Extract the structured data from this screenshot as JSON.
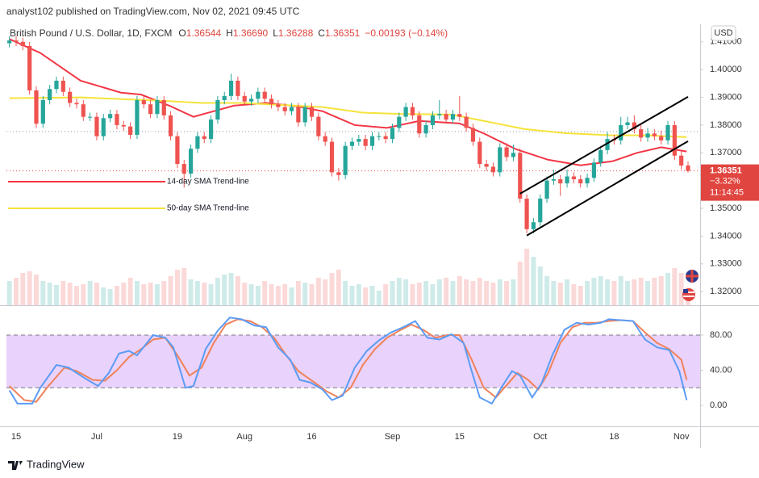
{
  "header": {
    "published": "analyst102 published on TradingView.com, Nov 02, 2021 09:45 UTC"
  },
  "footer": {
    "logo": "TradingView"
  },
  "chart_data": [
    {
      "type": "candlestick",
      "title": "British Pound / U.S. Dollar, 1D, FXCM",
      "ohlc_legend": [
        {
          "label": "O",
          "value": "1.36544"
        },
        {
          "label": "H",
          "value": "1.36690"
        },
        {
          "label": "L",
          "value": "1.36288"
        },
        {
          "label": "C",
          "value": "1.36351"
        }
      ],
      "change": "−0.00193 (−0.14%)",
      "currency": "USD",
      "xlim": [
        -0.44,
        102.8
      ],
      "xticks": [
        {
          "value": 1,
          "label": "15"
        },
        {
          "value": 13,
          "label": "Jul"
        },
        {
          "value": 25,
          "label": "19"
        },
        {
          "value": 35,
          "label": "Aug"
        },
        {
          "value": 45,
          "label": "16"
        },
        {
          "value": 57,
          "label": "Sep"
        },
        {
          "value": 67,
          "label": "15"
        },
        {
          "value": 79,
          "label": "Oct"
        },
        {
          "value": 90,
          "label": "18"
        },
        {
          "value": 100,
          "label": "Nov"
        }
      ],
      "ylim": [
        1.3151,
        1.4149
      ],
      "yticks": [
        {
          "value": 1.41,
          "label": "1.41000"
        },
        {
          "value": 1.4,
          "label": "1.40000"
        },
        {
          "value": 1.39,
          "label": "1.39000"
        },
        {
          "value": 1.38,
          "label": "1.38000"
        },
        {
          "value": 1.37,
          "label": "1.37000"
        },
        {
          "value": 1.35,
          "label": "1.35000"
        },
        {
          "value": 1.34,
          "label": "1.34000"
        },
        {
          "value": 1.33,
          "label": "1.33000"
        },
        {
          "value": 1.32,
          "label": "1.32000"
        }
      ],
      "up_color": "#26a69a",
      "down_color": "#ef5350",
      "open": [
        1.4095,
        1.4105,
        1.41,
        1.4085,
        1.3925,
        1.3805,
        1.389,
        1.393,
        1.396,
        1.392,
        1.388,
        1.3875,
        1.383,
        1.383,
        1.376,
        1.3825,
        1.384,
        1.38,
        1.3795,
        1.3765,
        1.389,
        1.3875,
        1.384,
        1.389,
        1.3835,
        1.376,
        1.366,
        1.3625,
        1.3715,
        1.376,
        1.375,
        1.382,
        1.389,
        1.3905,
        1.396,
        1.3905,
        1.3885,
        1.3895,
        1.392,
        1.3895,
        1.3875,
        1.3865,
        1.385,
        1.3865,
        1.381,
        1.3865,
        1.383,
        1.376,
        1.374,
        1.363,
        1.362,
        1.3725,
        1.374,
        1.375,
        1.3725,
        1.376,
        1.376,
        1.375,
        1.379,
        1.383,
        1.3865,
        1.3835,
        1.377,
        1.38,
        1.3835,
        1.384,
        1.382,
        1.384,
        1.383,
        1.379,
        1.374,
        1.366,
        1.365,
        1.363,
        1.372,
        1.3685,
        1.37,
        1.3535,
        1.3425,
        1.345,
        1.3535,
        1.36,
        1.3605,
        1.359,
        1.3615,
        1.3605,
        1.359,
        1.361,
        1.3665,
        1.371,
        1.375,
        1.3745,
        1.38,
        1.381,
        1.3785,
        1.3755,
        1.377,
        1.376,
        1.3745,
        1.38,
        1.369,
        1.36544
      ],
      "high": [
        1.412,
        1.412,
        1.4115,
        1.41,
        1.394,
        1.3905,
        1.3945,
        1.3975,
        1.3975,
        1.3935,
        1.3895,
        1.389,
        1.3845,
        1.3845,
        1.384,
        1.3855,
        1.3855,
        1.3815,
        1.381,
        1.3905,
        1.3905,
        1.389,
        1.3905,
        1.3905,
        1.385,
        1.3775,
        1.3675,
        1.373,
        1.3775,
        1.3775,
        1.3835,
        1.3905,
        1.392,
        1.3985,
        1.3975,
        1.392,
        1.391,
        1.3935,
        1.3935,
        1.391,
        1.389,
        1.388,
        1.388,
        1.388,
        1.388,
        1.388,
        1.3845,
        1.3775,
        1.3755,
        1.3645,
        1.374,
        1.3755,
        1.3765,
        1.3765,
        1.3775,
        1.3775,
        1.3775,
        1.3805,
        1.3845,
        1.388,
        1.388,
        1.385,
        1.3815,
        1.385,
        1.389,
        1.3855,
        1.3855,
        1.3905,
        1.3845,
        1.3805,
        1.3755,
        1.3675,
        1.3665,
        1.3735,
        1.3735,
        1.373,
        1.3715,
        1.355,
        1.3465,
        1.355,
        1.3615,
        1.364,
        1.362,
        1.364,
        1.363,
        1.362,
        1.3625,
        1.368,
        1.3725,
        1.3775,
        1.3765,
        1.383,
        1.383,
        1.3835,
        1.38,
        1.379,
        1.3785,
        1.378,
        1.3815,
        1.3815,
        1.3705,
        1.3669
      ],
      "low": [
        1.408,
        1.4085,
        1.407,
        1.391,
        1.379,
        1.379,
        1.3875,
        1.3915,
        1.3905,
        1.3865,
        1.386,
        1.3815,
        1.3815,
        1.3745,
        1.3745,
        1.381,
        1.3785,
        1.378,
        1.375,
        1.375,
        1.386,
        1.3825,
        1.3825,
        1.382,
        1.3745,
        1.3645,
        1.3575,
        1.361,
        1.37,
        1.3735,
        1.3735,
        1.3805,
        1.3875,
        1.389,
        1.389,
        1.387,
        1.387,
        1.388,
        1.388,
        1.386,
        1.385,
        1.3835,
        1.3835,
        1.3795,
        1.3795,
        1.3815,
        1.3745,
        1.3725,
        1.3615,
        1.36,
        1.3605,
        1.371,
        1.3725,
        1.371,
        1.371,
        1.3745,
        1.3735,
        1.3735,
        1.3775,
        1.3815,
        1.382,
        1.3755,
        1.3755,
        1.3785,
        1.382,
        1.3805,
        1.3805,
        1.3815,
        1.3775,
        1.3725,
        1.3645,
        1.3635,
        1.3615,
        1.3615,
        1.367,
        1.367,
        1.352,
        1.341,
        1.341,
        1.3435,
        1.352,
        1.3585,
        1.3545,
        1.3575,
        1.359,
        1.3575,
        1.3575,
        1.3595,
        1.365,
        1.3695,
        1.373,
        1.373,
        1.3785,
        1.377,
        1.374,
        1.374,
        1.3745,
        1.373,
        1.373,
        1.3675,
        1.364,
        1.36288
      ],
      "close": [
        1.4105,
        1.41,
        1.4085,
        1.3925,
        1.3805,
        1.389,
        1.393,
        1.396,
        1.392,
        1.388,
        1.3875,
        1.383,
        1.383,
        1.376,
        1.3825,
        1.384,
        1.38,
        1.3795,
        1.3765,
        1.389,
        1.3875,
        1.384,
        1.389,
        1.3835,
        1.376,
        1.366,
        1.3625,
        1.3715,
        1.376,
        1.375,
        1.382,
        1.389,
        1.3905,
        1.396,
        1.3905,
        1.3885,
        1.3895,
        1.392,
        1.3895,
        1.3875,
        1.3865,
        1.385,
        1.3865,
        1.381,
        1.3865,
        1.383,
        1.376,
        1.374,
        1.363,
        1.362,
        1.3725,
        1.374,
        1.375,
        1.3725,
        1.376,
        1.376,
        1.375,
        1.379,
        1.383,
        1.3865,
        1.3835,
        1.377,
        1.38,
        1.3835,
        1.384,
        1.382,
        1.384,
        1.383,
        1.379,
        1.374,
        1.366,
        1.365,
        1.363,
        1.372,
        1.3685,
        1.37,
        1.3535,
        1.3425,
        1.345,
        1.3535,
        1.36,
        1.3605,
        1.359,
        1.3615,
        1.3605,
        1.359,
        1.361,
        1.3665,
        1.371,
        1.375,
        1.3745,
        1.38,
        1.381,
        1.3785,
        1.3755,
        1.377,
        1.376,
        1.3745,
        1.38,
        1.369,
        1.36544,
        1.36351
      ],
      "volume": [
        30,
        34,
        40,
        42,
        38,
        30,
        28,
        25,
        30,
        28,
        24,
        26,
        30,
        28,
        22,
        20,
        24,
        28,
        34,
        30,
        26,
        28,
        26,
        30,
        36,
        44,
        46,
        32,
        30,
        28,
        26,
        34,
        38,
        40,
        36,
        28,
        26,
        24,
        30,
        26,
        24,
        26,
        22,
        30,
        28,
        26,
        34,
        32,
        40,
        44,
        30,
        24,
        26,
        22,
        24,
        18,
        26,
        30,
        34,
        32,
        26,
        28,
        30,
        26,
        32,
        34,
        30,
        36,
        32,
        30,
        34,
        30,
        28,
        32,
        30,
        32,
        54,
        70,
        60,
        48,
        36,
        30,
        28,
        32,
        26,
        24,
        30,
        34,
        36,
        32,
        30,
        36,
        30,
        32,
        34,
        30,
        34,
        36,
        40,
        46,
        40,
        22
      ],
      "series": [
        {
          "name": "14-day SMA Trend-line",
          "color": "#f23645",
          "x": [
            0,
            4.6,
            10.6,
            16.6,
            19.6,
            23.8,
            27.4,
            33.4,
            38.2,
            43,
            46.6,
            51.4,
            56.2,
            61,
            67,
            70.6,
            75.4,
            80.2,
            85,
            89.8,
            93.4,
            97,
            100.8
          ],
          "values": [
            1.411,
            1.406,
            1.396,
            1.3917,
            1.391,
            1.387,
            1.383,
            1.387,
            1.388,
            1.3867,
            1.385,
            1.38,
            1.379,
            1.3815,
            1.3806,
            1.377,
            1.3713,
            1.3675,
            1.3655,
            1.367,
            1.37,
            1.372,
            1.3705
          ]
        },
        {
          "name": "50-day SMA Trend-line",
          "color": "#f5e33b",
          "x": [
            0,
            10.6,
            22.6,
            28.6,
            34.6,
            46.6,
            52.6,
            58.6,
            65.8,
            70.6,
            76.6,
            82.6,
            89.8,
            94.6,
            100.8
          ],
          "values": [
            1.3897,
            1.39,
            1.3888,
            1.388,
            1.388,
            1.3865,
            1.3845,
            1.384,
            1.3838,
            1.3815,
            1.3786,
            1.3771,
            1.3763,
            1.3763,
            1.3757
          ]
        }
      ],
      "trend_lines": [
        {
          "color": "#000000",
          "x": [
            76,
            101
          ],
          "values": [
            1.3553,
            1.3902
          ]
        },
        {
          "color": "#000000",
          "x": [
            77,
            101
          ],
          "values": [
            1.3402,
            1.3742
          ]
        }
      ],
      "hlines": [
        {
          "value": 1.3777,
          "color": "#9598a1"
        },
        {
          "value": 1.36351,
          "color": "#e0453f"
        }
      ],
      "last_price": {
        "change": "−3.32%",
        "countdown": "11:14:45",
        "color": "#e0453f"
      }
    },
    {
      "type": "line",
      "xlim": [
        -0.44,
        102.8
      ],
      "ylim": [
        -23.9,
        112.2
      ],
      "yticks": [
        {
          "value": 80,
          "label": "80.00"
        },
        {
          "value": 40,
          "label": "40.00"
        },
        {
          "value": 0,
          "label": "0.00"
        }
      ],
      "bands": [
        20,
        80
      ],
      "band_color": "#e9d2fb",
      "series": [
        {
          "color": "#5b9cf6",
          "x": [
            0,
            1.2,
            3.4,
            4.6,
            7,
            8.8,
            11.2,
            13.2,
            14.8,
            16.3,
            17.8,
            19,
            21.4,
            23.2,
            24.4,
            26.2,
            27.4,
            29.2,
            31,
            32.8,
            34.6,
            36.4,
            38.2,
            40,
            41.8,
            43.2,
            44.8,
            46.6,
            48,
            49.6,
            51.4,
            53.2,
            55,
            56.8,
            58.6,
            60.4,
            62.2,
            64,
            65.8,
            67.6,
            68.8,
            70,
            71.8,
            73.2,
            74.8,
            76,
            77.8,
            79.2,
            80.8,
            82.6,
            84.4,
            86.2,
            88,
            89.2,
            91,
            92.8,
            94.6,
            96.4,
            98.2,
            99.7,
            100.8
          ],
          "values": [
            17,
            2,
            2,
            20,
            46,
            43,
            31,
            22,
            37,
            59,
            62,
            57,
            80,
            77,
            66,
            20,
            22,
            64,
            85,
            100,
            98,
            91,
            89,
            66,
            52,
            29,
            26,
            18,
            6,
            11,
            43,
            62,
            74,
            83,
            89,
            96,
            77,
            75,
            81,
            71,
            39,
            9,
            2,
            20,
            39,
            34,
            9,
            25,
            57,
            86,
            94,
            92,
            94,
            98,
            97,
            96,
            75,
            66,
            63,
            39,
            6
          ]
        },
        {
          "color": "#f0825a",
          "x": [
            0,
            2.2,
            4,
            5.8,
            8.2,
            10,
            12.4,
            14.2,
            16,
            17.8,
            19.6,
            21.4,
            23.2,
            25,
            26.8,
            28.6,
            30.4,
            32.2,
            34,
            35.8,
            37.6,
            39.4,
            41.2,
            43,
            45.4,
            47.2,
            49,
            50.8,
            52.6,
            54.4,
            56.2,
            58,
            59.8,
            61.6,
            63.4,
            65.2,
            67,
            68.8,
            70.6,
            72.4,
            73.9,
            75.6,
            77.2,
            78.7,
            80.2,
            82,
            83.8,
            85.6,
            87.4,
            89.2,
            91,
            92.8,
            94.6,
            96.4,
            98.2,
            100,
            100.8
          ],
          "values": [
            22,
            6,
            4,
            22,
            43,
            39,
            29,
            28,
            40,
            55,
            64,
            75,
            77,
            57,
            34,
            43,
            71,
            92,
            98,
            96,
            89,
            77,
            57,
            39,
            26,
            16,
            9,
            20,
            46,
            64,
            77,
            85,
            92,
            86,
            77,
            80,
            80,
            52,
            20,
            9,
            22,
            37,
            29,
            18,
            37,
            71,
            89,
            94,
            94,
            96,
            97,
            96,
            83,
            71,
            64,
            52,
            29
          ]
        }
      ]
    }
  ]
}
